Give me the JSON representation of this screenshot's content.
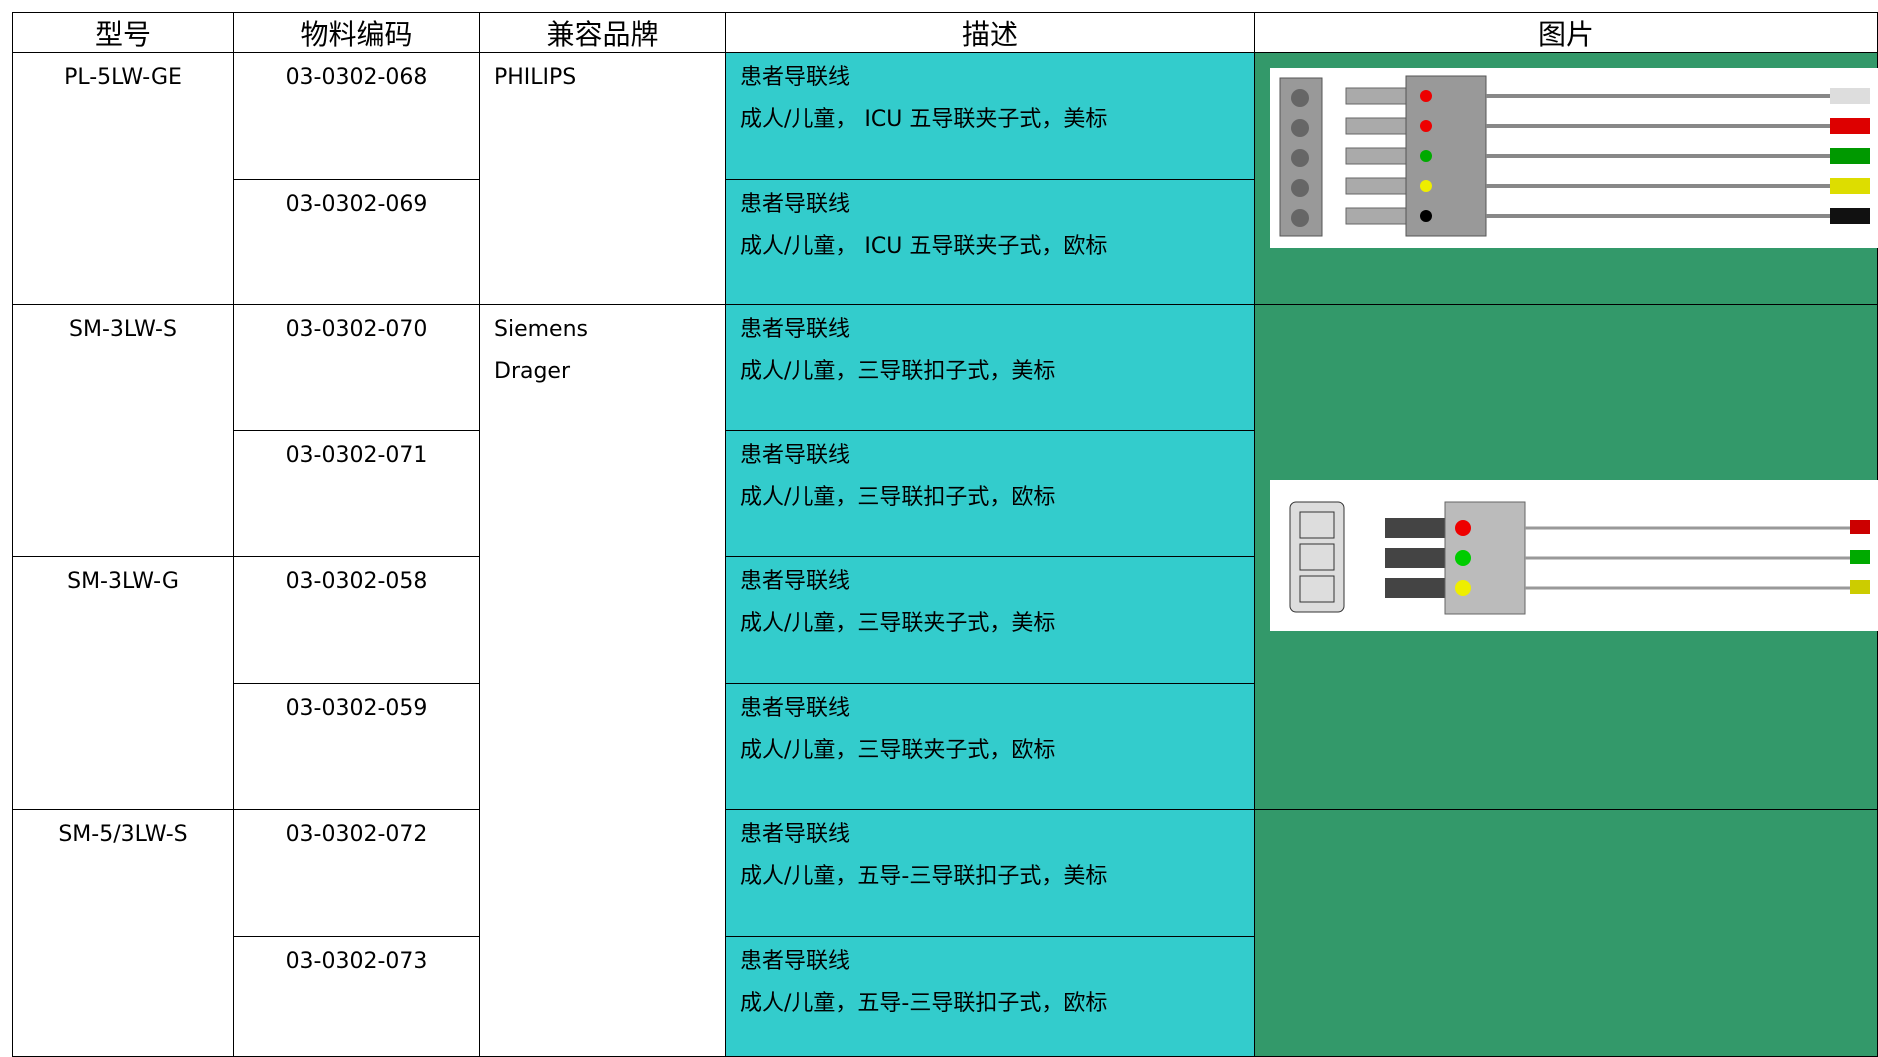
{
  "table": {
    "header": [
      "型号",
      "物料编码",
      "兼容品牌",
      "描述",
      "图片"
    ],
    "models": [
      "PL-5LW-GE",
      "SM-3LW-S",
      "SM-3LW-G",
      "SM-5/3LW-S"
    ],
    "brands": [
      [
        "PHILIPS"
      ],
      [
        "Siemens",
        "Drager"
      ]
    ],
    "rows": [
      {
        "code": "03-0302-068",
        "desc": [
          "患者导联线",
          "成人/儿童， ICU 五导联夹子式，美标"
        ]
      },
      {
        "code": "03-0302-069",
        "desc": [
          "患者导联线",
          "成人/儿童， ICU 五导联夹子式，欧标"
        ]
      },
      {
        "code": "03-0302-070",
        "desc": [
          "患者导联线",
          "成人/儿童，三导联扣子式，美标"
        ]
      },
      {
        "code": "03-0302-071",
        "desc": [
          "患者导联线",
          "成人/儿童，三导联扣子式，欧标"
        ]
      },
      {
        "code": "03-0302-058",
        "desc": [
          "患者导联线",
          "成人/儿童，三导联夹子式，美标"
        ]
      },
      {
        "code": "03-0302-059",
        "desc": [
          "患者导联线",
          "成人/儿童，三导联夹子式，欧标"
        ]
      },
      {
        "code": "03-0302-072",
        "desc": [
          "患者导联线",
          "成人/儿童，五导-三导联扣子式，美标"
        ]
      },
      {
        "code": "03-0302-073",
        "desc": [
          "患者导联线",
          "成人/儿童，五导-三导联扣子式，欧标"
        ]
      }
    ]
  }
}
